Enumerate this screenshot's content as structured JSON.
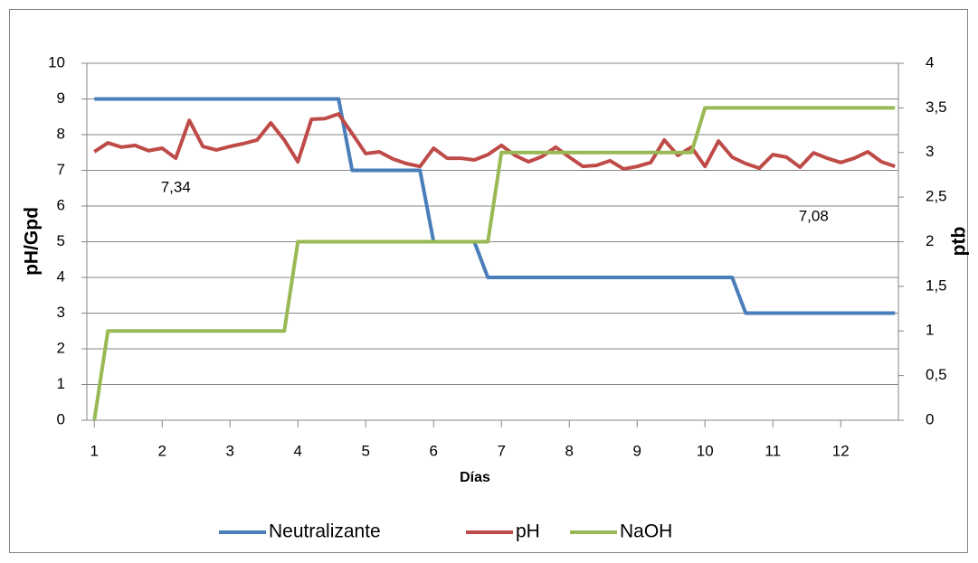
{
  "chart_data": {
    "type": "line",
    "xlabel": "Días",
    "ylabel": "pH/Gpd",
    "y2label": "ptb",
    "xlim": [
      0.89,
      12.85
    ],
    "xticks": [
      1,
      2,
      3,
      4,
      5,
      6,
      7,
      8,
      9,
      10,
      11,
      12
    ],
    "ylim": [
      0,
      10
    ],
    "yticks": [
      0,
      1,
      2,
      3,
      4,
      5,
      6,
      7,
      8,
      9,
      10
    ],
    "y2lim": [
      0,
      4
    ],
    "y2ticks": [
      0,
      {
        "value": 0.5,
        "label": "0,5"
      },
      1,
      {
        "value": 1.5,
        "label": "1,5"
      },
      2,
      {
        "value": 2.5,
        "label": "2,5"
      },
      3,
      {
        "value": 3.5,
        "label": "3,5"
      },
      4
    ],
    "grid": true,
    "legend": "bottom",
    "annotations": [
      {
        "text": "7,34",
        "x": 2.2,
        "y": 6.5
      },
      {
        "text": "7,08",
        "x": 11.6,
        "y": 5.7
      }
    ],
    "series": [
      {
        "name": "Neutralizante",
        "color": "#4a7ebb",
        "x": [
          1,
          4.6,
          4.8,
          5.8,
          6.0,
          6.6,
          6.8,
          10.4,
          10.6,
          12.8
        ],
        "values": [
          9,
          9,
          7,
          7,
          5,
          5,
          4,
          4,
          3,
          3
        ]
      },
      {
        "name": "pH",
        "color": "#be4b48",
        "x": [
          1,
          1.2,
          1.4,
          1.6,
          1.8,
          2.0,
          2.2,
          2.4,
          2.6,
          2.8,
          3.0,
          3.2,
          3.4,
          3.6,
          3.8,
          4.0,
          4.2,
          4.4,
          4.6,
          4.8,
          5.0,
          5.2,
          5.4,
          5.6,
          5.8,
          6.0,
          6.2,
          6.4,
          6.6,
          6.8,
          7.0,
          7.2,
          7.4,
          7.6,
          7.8,
          8.0,
          8.2,
          8.4,
          8.6,
          8.8,
          9.0,
          9.2,
          9.4,
          9.6,
          9.8,
          10.0,
          10.2,
          10.4,
          10.6,
          10.8,
          11.0,
          11.2,
          11.4,
          11.6,
          11.8,
          12.0,
          12.2,
          12.4,
          12.6,
          12.8
        ],
        "values": [
          7.52,
          7.77,
          7.65,
          7.7,
          7.55,
          7.62,
          7.34,
          8.4,
          7.67,
          7.57,
          7.67,
          7.75,
          7.85,
          8.33,
          7.85,
          7.24,
          8.43,
          8.45,
          8.58,
          8.03,
          7.47,
          7.52,
          7.32,
          7.19,
          7.11,
          7.62,
          7.34,
          7.34,
          7.29,
          7.44,
          7.7,
          7.42,
          7.24,
          7.39,
          7.65,
          7.37,
          7.11,
          7.14,
          7.27,
          7.04,
          7.11,
          7.22,
          7.85,
          7.42,
          7.65,
          7.11,
          7.82,
          7.37,
          7.19,
          7.06,
          7.44,
          7.37,
          7.09,
          7.49,
          7.34,
          7.22,
          7.34,
          7.52,
          7.24,
          7.11
        ]
      },
      {
        "name": "NaOH",
        "color": "#98b954",
        "axis": "y2",
        "x": [
          1,
          1.2,
          3.8,
          4.0,
          6.8,
          7.0,
          9.8,
          10.0,
          12.8
        ],
        "values": [
          0,
          1,
          1,
          2,
          2,
          3,
          3,
          3.5,
          3.5
        ]
      }
    ]
  }
}
